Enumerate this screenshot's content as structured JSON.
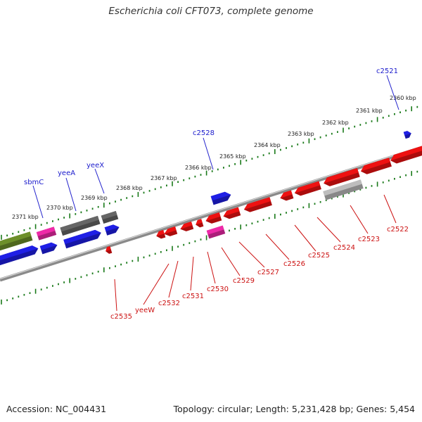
{
  "title": "Escherichia coli CFT073, complete genome",
  "footer": {
    "accession": "Accession: NC_004431",
    "topology": "Topology: circular; Length: 5,231,428 bp; Genes: 5,454"
  },
  "colors": {
    "forward_gene": "#1f1fe6",
    "reverse_gene": "#ee1111",
    "rna": "#ee2aa8",
    "pseudo_dark": "#666666",
    "pseudo_light": "#bdbdbd",
    "olive": "#6d8f2a",
    "tick_green": "#1a7a1a"
  },
  "kbp_ticks": [
    "2360 kbp",
    "2361 kbp",
    "2362 kbp",
    "2363 kbp",
    "2364 kbp",
    "2365 kbp",
    "2366 kbp",
    "2367 kbp",
    "2368 kbp",
    "2369 kbp",
    "2370 kbp",
    "2371 kbp"
  ],
  "forward_labels": [
    "c2521",
    "c2528",
    "yeeX",
    "yeeA",
    "sbmC"
  ],
  "reverse_labels": [
    "c2522",
    "c2523",
    "c2524",
    "c2525",
    "c2526",
    "c2527",
    "c2529",
    "c2530",
    "c2531",
    "c2532",
    "yeeW",
    "c2535"
  ]
}
